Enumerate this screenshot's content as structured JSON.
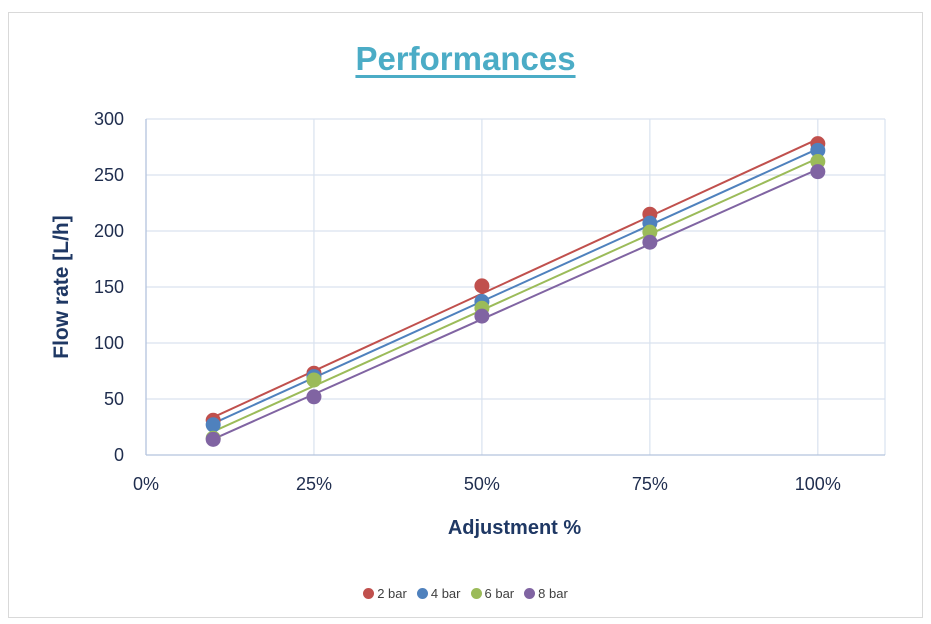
{
  "chart_data": {
    "type": "scatter",
    "title": "Performances",
    "xlabel": "Adjustment %",
    "ylabel": "Flow rate [L/h]",
    "xlim": [
      0,
      1.1
    ],
    "ylim": [
      0,
      300
    ],
    "x_tick_labels": [
      {
        "value": 0,
        "label": "0%"
      },
      {
        "value": 0.25,
        "label": "25%"
      },
      {
        "value": 0.5,
        "label": "50%"
      },
      {
        "value": 0.75,
        "label": "75%"
      },
      {
        "value": 1.0,
        "label": "100%"
      }
    ],
    "y_tick_labels": [
      {
        "value": 0,
        "label": "0"
      },
      {
        "value": 50,
        "label": "50"
      },
      {
        "value": 100,
        "label": "100"
      },
      {
        "value": 150,
        "label": "150"
      },
      {
        "value": 200,
        "label": "200"
      },
      {
        "value": 250,
        "label": "250"
      },
      {
        "value": 300,
        "label": "300"
      }
    ],
    "grid": true,
    "trendlines": true,
    "legend_position": "bottom",
    "x": [
      0.1,
      0.25,
      0.5,
      0.75,
      1.0
    ],
    "series": [
      {
        "name": "2 bar",
        "color": "#c0504d",
        "values": [
          31,
          73,
          151,
          215,
          278
        ]
      },
      {
        "name": "4 bar",
        "color": "#4f81bd",
        "values": [
          27,
          70,
          137,
          207,
          272
        ]
      },
      {
        "name": "6 bar",
        "color": "#9bbb59",
        "values": [
          15,
          67,
          131,
          199,
          262
        ]
      },
      {
        "name": "8 bar",
        "color": "#8064a2",
        "values": [
          14,
          52,
          124,
          190,
          253
        ]
      }
    ]
  }
}
